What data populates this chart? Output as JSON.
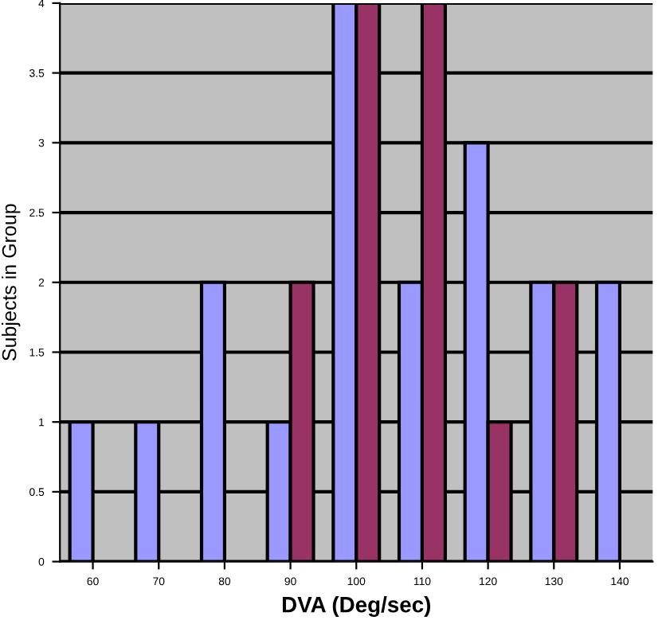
{
  "chart_data": {
    "type": "bar",
    "xlabel": "DVA (Deg/sec)",
    "ylabel": "Subjects in Group",
    "categories": [
      "60",
      "70",
      "80",
      "90",
      "100",
      "110",
      "120",
      "130",
      "140"
    ],
    "series": [
      {
        "color": "#9999ff",
        "values": [
          1,
          1,
          2,
          1,
          4,
          2,
          3,
          2,
          2
        ]
      },
      {
        "color": "#993366",
        "values": [
          null,
          null,
          null,
          2,
          4,
          4,
          1,
          2,
          null
        ]
      }
    ],
    "ylim": [
      0,
      4
    ],
    "yticks": [
      0,
      0.5,
      1,
      1.5,
      2,
      2.5,
      3,
      3.5,
      4
    ],
    "grid": "y",
    "legend": false
  }
}
